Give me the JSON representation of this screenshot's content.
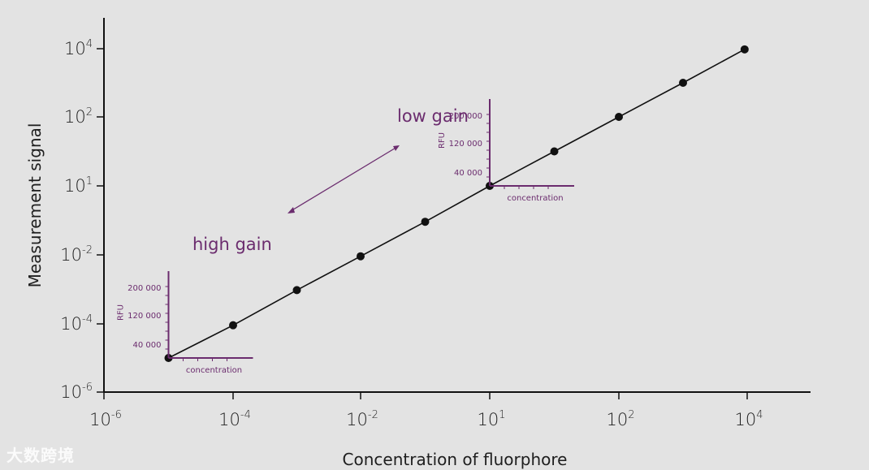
{
  "chart_data": {
    "type": "scatter",
    "log_scale": {
      "x": true,
      "y": true
    },
    "xlabel": "Concentration of fluorphore",
    "ylabel": "Measurement signal",
    "x_ticks": [
      {
        "base": "10",
        "exp": "-6"
      },
      {
        "base": "10",
        "exp": "-4"
      },
      {
        "base": "10",
        "exp": "-2"
      },
      {
        "base": "10",
        "exp": "1"
      },
      {
        "base": "10",
        "exp": "2"
      },
      {
        "base": "10",
        "exp": "4"
      }
    ],
    "y_ticks": [
      {
        "base": "10",
        "exp": "-6"
      },
      {
        "base": "10",
        "exp": "-4"
      },
      {
        "base": "10",
        "exp": "-2"
      },
      {
        "base": "10",
        "exp": "1"
      },
      {
        "base": "10",
        "exp": "2"
      },
      {
        "base": "10",
        "exp": "4"
      }
    ],
    "x_tick_positions": [
      0,
      1,
      2,
      3,
      4,
      5
    ],
    "y_tick_positions": [
      0,
      1,
      2,
      3,
      4,
      5
    ],
    "series": [
      {
        "points": [
          {
            "x": 0.5,
            "y": 0.5
          },
          {
            "x": 1.0,
            "y": 0.98
          },
          {
            "x": 1.5,
            "y": 1.49
          },
          {
            "x": 2.0,
            "y": 1.98
          },
          {
            "x": 2.5,
            "y": 2.48
          },
          {
            "x": 3.0,
            "y": 3.0
          },
          {
            "x": 3.5,
            "y": 3.5
          },
          {
            "x": 4.0,
            "y": 4.0
          },
          {
            "x": 4.5,
            "y": 4.5
          },
          {
            "x": 4.98,
            "y": 4.99
          }
        ]
      }
    ],
    "annotations": {
      "high_gain": "high gain",
      "low_gain": "low gain"
    },
    "insets": [
      {
        "ylabel": "RFU",
        "ticks": [
          "200 000",
          "120 000",
          "40 000"
        ],
        "xlabel": "concentration"
      },
      {
        "ylabel": "RFU",
        "ticks": [
          "200 000",
          "120 000",
          "40 000"
        ],
        "xlabel": "concentration"
      }
    ],
    "colors": {
      "data": "#111111",
      "annotation": "#6b2c6e",
      "background": "#e3e3e3"
    }
  },
  "watermark": "大数跨境"
}
